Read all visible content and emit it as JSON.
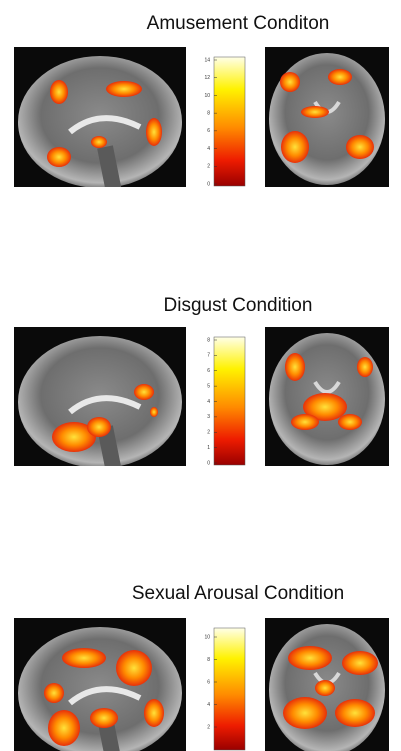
{
  "panels": [
    {
      "title": "Amusement Conditon",
      "colorbar": {
        "ticks": [
          14,
          12,
          10,
          8,
          6,
          4,
          2,
          0
        ]
      }
    },
    {
      "title": "Disgust Condition",
      "colorbar": {
        "ticks": [
          8,
          7,
          6,
          5,
          4,
          3,
          2,
          1,
          0
        ]
      }
    },
    {
      "title": "Sexual Arousal Condition",
      "colorbar": {
        "ticks": [
          10,
          8,
          6,
          4,
          2
        ]
      }
    }
  ]
}
